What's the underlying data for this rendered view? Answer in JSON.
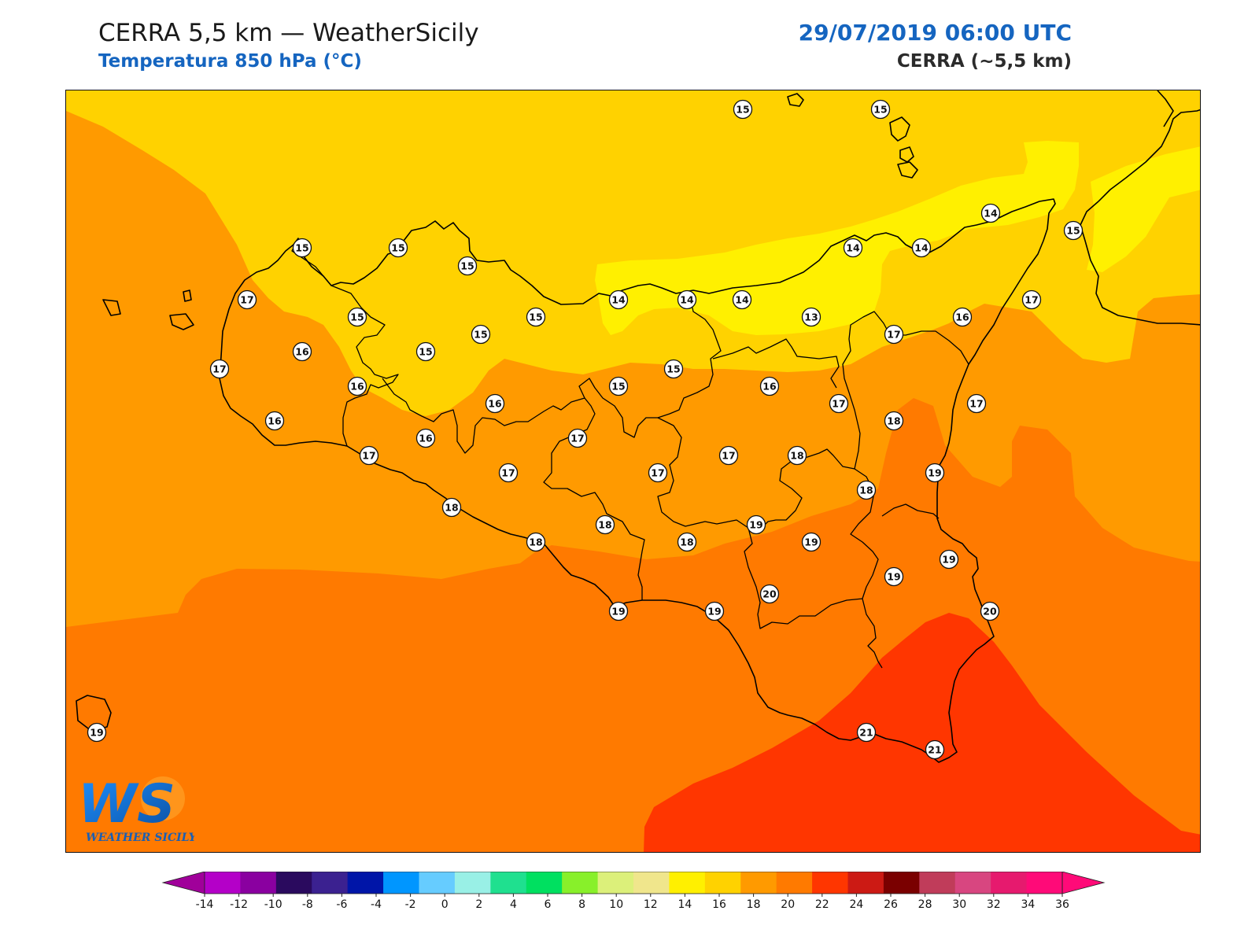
{
  "header": {
    "title": "CERRA 5,5 km — WeatherSicily",
    "subtitle": "Temperatura 850 hPa (°C)",
    "datetime": "29/07/2019 06:00 UTC",
    "model": "CERRA (~5,5 km)"
  },
  "logo": {
    "letters": "WS",
    "text": "WEATHER SICILY"
  },
  "colorbar": {
    "tick_labels": [
      "-14",
      "-12",
      "-10",
      "-8",
      "-6",
      "-4",
      "-2",
      "0",
      "2",
      "4",
      "6",
      "8",
      "10",
      "12",
      "14",
      "16",
      "18",
      "20",
      "22",
      "24",
      "26",
      "28",
      "30",
      "32",
      "34",
      "36"
    ],
    "colors": [
      "#b400c8",
      "#8a00a0",
      "#2a0a5e",
      "#3b2190",
      "#0015a8",
      "#0096ff",
      "#66ccff",
      "#99f0e6",
      "#1fe08f",
      "#00e060",
      "#88f02a",
      "#dcf07a",
      "#f0e68c",
      "#fff000",
      "#ffd200",
      "#ff9a00",
      "#ff7a00",
      "#ff3600",
      "#cc1a14",
      "#7a0000",
      "#c03c5a",
      "#d84680",
      "#e61a6e",
      "#ff0a78"
    ],
    "extend_low_color": "#a0009a",
    "extend_high_color": "#ff0a78"
  },
  "map": {
    "fields": {
      "t14": "#fff000",
      "t15": "#ffd200",
      "t16": "#ff9a00",
      "t17": "#ff7a00",
      "t18": "#ff3600"
    },
    "coastline_color": "#000000",
    "stations": [
      {
        "v": "15"
      },
      {
        "v": "15"
      },
      {
        "v": "15"
      },
      {
        "v": "15"
      },
      {
        "v": "15"
      },
      {
        "v": "17"
      },
      {
        "v": "15"
      },
      {
        "v": "15"
      },
      {
        "v": "15"
      },
      {
        "v": "14"
      },
      {
        "v": "14"
      },
      {
        "v": "14"
      },
      {
        "v": "13"
      },
      {
        "v": "14"
      },
      {
        "v": "14"
      },
      {
        "v": "14"
      },
      {
        "v": "15"
      },
      {
        "v": "17"
      },
      {
        "v": "16"
      },
      {
        "v": "17"
      },
      {
        "v": "16"
      },
      {
        "v": "15"
      },
      {
        "v": "16"
      },
      {
        "v": "15"
      },
      {
        "v": "16"
      },
      {
        "v": "16"
      },
      {
        "v": "15"
      },
      {
        "v": "16"
      },
      {
        "v": "17"
      },
      {
        "v": "17"
      },
      {
        "v": "18"
      },
      {
        "v": "17"
      },
      {
        "v": "16"
      },
      {
        "v": "17"
      },
      {
        "v": "17"
      },
      {
        "v": "17"
      },
      {
        "v": "17"
      },
      {
        "v": "19"
      },
      {
        "v": "18"
      },
      {
        "v": "17"
      },
      {
        "v": "18"
      },
      {
        "v": "18"
      },
      {
        "v": "18"
      },
      {
        "v": "18"
      },
      {
        "v": "18"
      },
      {
        "v": "19"
      },
      {
        "v": "19"
      },
      {
        "v": "19"
      },
      {
        "v": "19"
      },
      {
        "v": "20"
      },
      {
        "v": "19"
      },
      {
        "v": "19"
      },
      {
        "v": "20"
      },
      {
        "v": "21"
      },
      {
        "v": "21"
      },
      {
        "v": "19"
      }
    ]
  }
}
